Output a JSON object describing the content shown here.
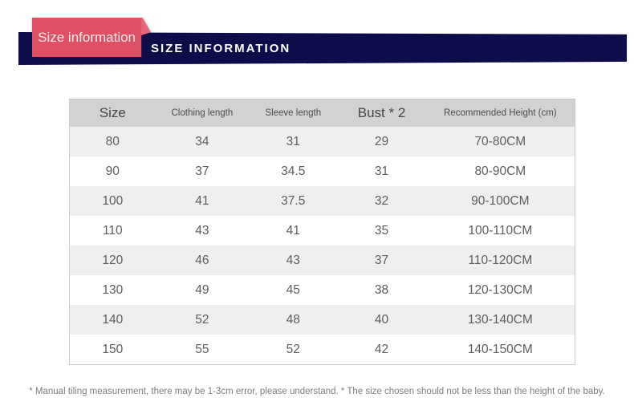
{
  "ribbon": {
    "label": "Size information"
  },
  "header_bar": {
    "title": "SIZE INFORMATION"
  },
  "table": {
    "columns": [
      "Size",
      "Clothing length",
      "Sleeve length",
      "Bust * 2",
      "Recommended Height (cm)"
    ],
    "rows": [
      [
        "80",
        "34",
        "31",
        "29",
        "70-80CM"
      ],
      [
        "90",
        "37",
        "34.5",
        "31",
        "80-90CM"
      ],
      [
        "100",
        "41",
        "37.5",
        "32",
        "90-100CM"
      ],
      [
        "110",
        "43",
        "41",
        "35",
        "100-110CM"
      ],
      [
        "120",
        "46",
        "43",
        "37",
        "110-120CM"
      ],
      [
        "130",
        "49",
        "45",
        "38",
        "120-130CM"
      ],
      [
        "140",
        "52",
        "48",
        "40",
        "130-140CM"
      ],
      [
        "150",
        "55",
        "52",
        "42",
        "140-150CM"
      ]
    ]
  },
  "footnote": "* Manual tiling measurement, there may be 1-3cm error, please understand. * The size chosen should not be less than the height of the baby.",
  "colors": {
    "ribbon_red": "#e05064",
    "bar_navy": "#0d0d4b",
    "header_gray": "#d2d2d2",
    "row_alt_gray": "#efefef"
  }
}
